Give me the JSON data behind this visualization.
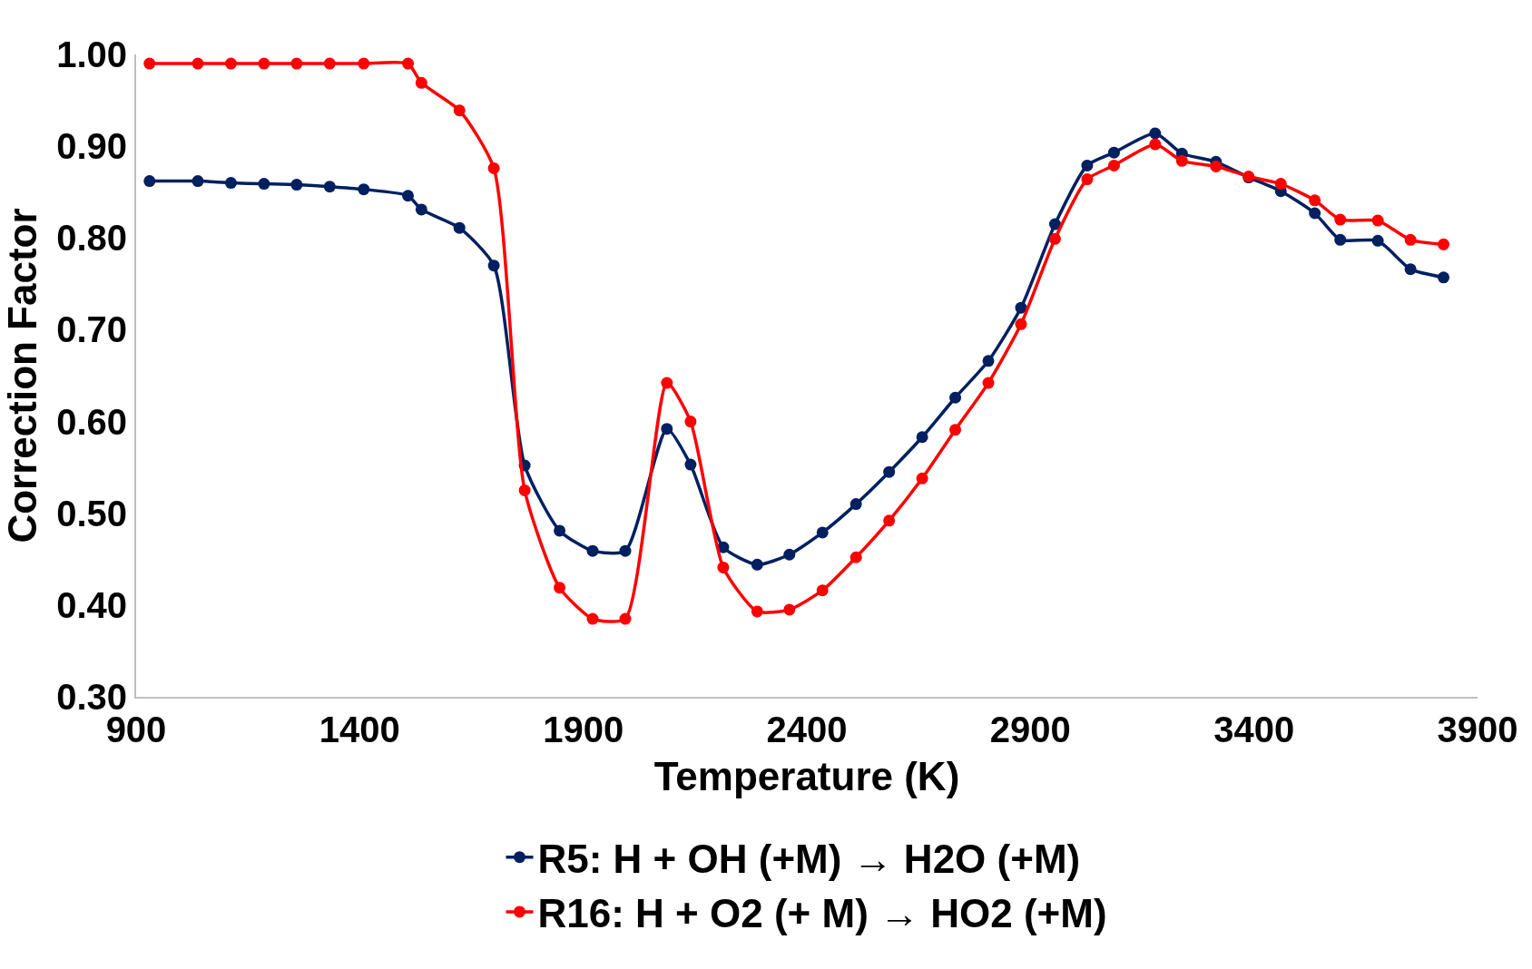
{
  "chart_data": {
    "type": "line",
    "xlabel": "Temperature (K)",
    "ylabel": "Correction Factor",
    "x": [
      930,
      1038,
      1112,
      1186,
      1259,
      1333,
      1409,
      1508,
      1538,
      1623,
      1700,
      1769,
      1847,
      1921,
      1994,
      2087,
      2140,
      2213,
      2289,
      2361,
      2435,
      2510,
      2584,
      2658,
      2732,
      2806,
      2879,
      2955,
      3027,
      3087,
      3179,
      3239,
      3315,
      3388,
      3460,
      3536,
      3593,
      3677,
      3750,
      3824
    ],
    "series": [
      {
        "name": "R5: H + OH (+M) → H2O (+M)",
        "color": "#002060",
        "values": [
          0.862,
          0.862,
          0.86,
          0.859,
          0.858,
          0.856,
          0.853,
          0.846,
          0.831,
          0.811,
          0.77,
          0.552,
          0.481,
          0.459,
          0.459,
          0.592,
          0.553,
          0.463,
          0.444,
          0.455,
          0.479,
          0.51,
          0.545,
          0.583,
          0.626,
          0.666,
          0.724,
          0.815,
          0.879,
          0.893,
          0.914,
          0.892,
          0.883,
          0.866,
          0.851,
          0.827,
          0.798,
          0.797,
          0.766,
          0.757
        ]
      },
      {
        "name": "R16: H + O2 (+ M) → HO2 (+M)",
        "color": "#ff0000",
        "values": [
          0.99,
          0.99,
          0.99,
          0.99,
          0.99,
          0.99,
          0.99,
          0.99,
          0.969,
          0.939,
          0.876,
          0.525,
          0.419,
          0.385,
          0.385,
          0.642,
          0.6,
          0.441,
          0.393,
          0.395,
          0.416,
          0.452,
          0.492,
          0.538,
          0.591,
          0.642,
          0.706,
          0.799,
          0.864,
          0.879,
          0.902,
          0.884,
          0.878,
          0.867,
          0.859,
          0.841,
          0.82,
          0.819,
          0.798,
          0.793
        ]
      }
    ],
    "xlim": [
      900,
      3900
    ],
    "xticks": [
      900,
      1400,
      1900,
      2400,
      2900,
      3400,
      3900
    ],
    "ylim": [
      0.3,
      1.0
    ],
    "yticks": [
      {
        "value": 0.3,
        "label": "0.30"
      },
      {
        "value": 0.4,
        "label": "0.40"
      },
      {
        "value": 0.5,
        "label": "0.50"
      },
      {
        "value": 0.6,
        "label": "0.60"
      },
      {
        "value": 0.7,
        "label": "0.70"
      },
      {
        "value": 0.8,
        "label": "0.80"
      },
      {
        "value": 0.9,
        "label": "0.90"
      },
      {
        "value": 1.0,
        "label": "1.00"
      }
    ],
    "legend": "bottom",
    "marker": "circle",
    "line_style": "solid"
  }
}
